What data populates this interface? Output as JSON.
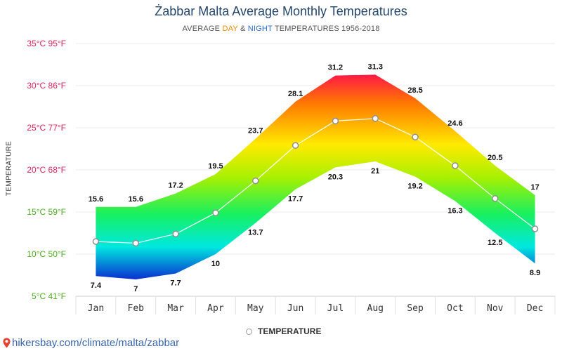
{
  "title": "Żabbar Malta Average Monthly Temperatures",
  "subtitle": {
    "prefix": "AVERAGE ",
    "day": "DAY",
    "middle": " & ",
    "night": "NIGHT",
    "suffix": " TEMPERATURES 1956-2018"
  },
  "ylabel": "TEMPERATURE",
  "legend_label": "TEMPERATURE",
  "source": "hikersbay.com/climate/malta/zabbar",
  "colors": {
    "day_label": "#ef8c00",
    "night_label": "#2a6bd1",
    "source_link": "#3a66b0",
    "pin_icon": "#e8412c"
  },
  "icons": {
    "source": "map-pin-icon",
    "legend": "circle-marker-icon"
  },
  "chart_data": {
    "type": "area",
    "categories": [
      "Jan",
      "Feb",
      "Mar",
      "Apr",
      "May",
      "Jun",
      "Jul",
      "Aug",
      "Sep",
      "Oct",
      "Nov",
      "Dec"
    ],
    "ylim": [
      5,
      35
    ],
    "yticks": [
      {
        "value": 35,
        "label": "35°C 95°F",
        "color": "#e0245e"
      },
      {
        "value": 30,
        "label": "30°C 86°F",
        "color": "#e0245e"
      },
      {
        "value": 25,
        "label": "25°C 77°F",
        "color": "#e0245e"
      },
      {
        "value": 20,
        "label": "20°C 68°F",
        "color": "#e0245e"
      },
      {
        "value": 15,
        "label": "15°C 59°F",
        "color": "#4caf1e"
      },
      {
        "value": 10,
        "label": "10°C 50°F",
        "color": "#4caf1e"
      },
      {
        "value": 5,
        "label": "5°C 41°F",
        "color": "#4caf1e"
      }
    ],
    "day": [
      15.6,
      15.6,
      17.2,
      19.5,
      23.7,
      28.1,
      31.2,
      31.3,
      28.5,
      24.6,
      20.5,
      17
    ],
    "night": [
      7.4,
      7,
      7.7,
      10,
      13.7,
      17.7,
      20.3,
      21,
      19.2,
      16.3,
      12.5,
      8.9
    ],
    "series": [
      {
        "name": "TEMPERATURE",
        "values": [
          11.5,
          11.3,
          12.4,
          14.9,
          18.7,
          22.9,
          25.8,
          26.1,
          23.9,
          20.5,
          16.6,
          13
        ]
      }
    ],
    "grid": true,
    "legend": "bottom-center"
  }
}
